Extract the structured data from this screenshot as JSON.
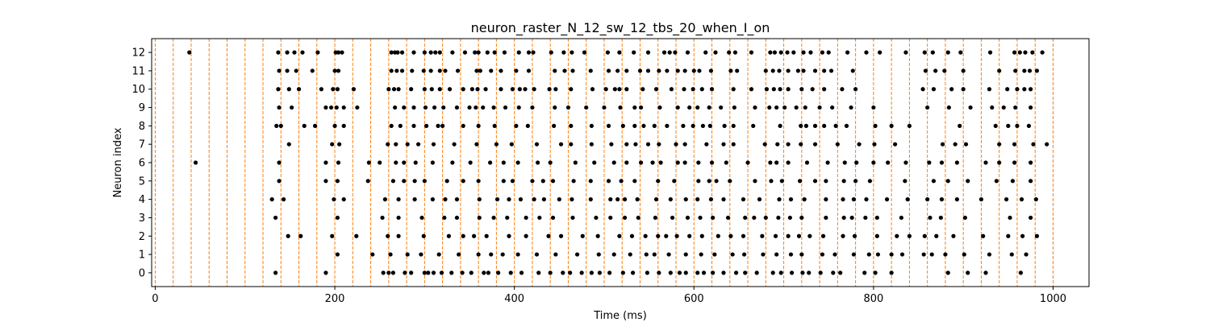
{
  "chart_data": {
    "type": "scatter",
    "title": "neuron_raster_N_12_sw_12_tbs_20_when_I_on",
    "xlabel": "Time (ms)",
    "ylabel": "Neuron index",
    "xlim": [
      -4,
      1040
    ],
    "ylim": [
      -0.75,
      12.75
    ],
    "x_ticks": [
      0,
      200,
      400,
      600,
      800,
      1000
    ],
    "y_ticks": [
      0,
      1,
      2,
      3,
      4,
      5,
      6,
      7,
      8,
      9,
      10,
      11,
      12
    ],
    "grid": false,
    "legend": "none",
    "vlines": {
      "description": "dashed time-bin boundaries",
      "color": "#ff7f0e",
      "x": [
        0,
        20,
        40,
        60,
        80,
        100,
        120,
        140,
        160,
        180,
        200,
        220,
        240,
        260,
        280,
        300,
        320,
        340,
        360,
        380,
        400,
        420,
        440,
        460,
        480,
        500,
        520,
        540,
        560,
        580,
        600,
        620,
        640,
        660,
        680,
        700,
        720,
        740,
        760,
        780,
        800,
        820,
        840,
        860,
        880,
        900,
        920,
        940,
        960,
        980,
        1000
      ]
    },
    "series": [
      {
        "color": "#000000",
        "spikes": [
          {
            "neuron": 12,
            "times": [
              38,
              137,
              147,
              155,
              164,
              181,
              201,
              204,
              208,
              263,
              267,
              270,
              275,
              288,
              300,
              307,
              312,
              317,
              331,
              345,
              356,
              360,
              370,
              378,
              389,
              405,
              416,
              421,
              441,
              455,
              464,
              478,
              504,
              517,
              533,
              549,
              567,
              573,
              579,
              593,
              613,
              624,
              639,
              646,
              664,
              685,
              690,
              697,
              704,
              711,
              722,
              730,
              743,
              750,
              771,
              792,
              807,
              836,
              857,
              866,
              883,
              897,
              930,
              957,
              963,
              969,
              977,
              988
            ]
          },
          {
            "neuron": 11,
            "times": [
              138,
              147,
              157,
              175,
              200,
              204,
              263,
              269,
              275,
              286,
              299,
              307,
              317,
              323,
              337,
              358,
              362,
              374,
              385,
              402,
              416,
              445,
              456,
              465,
              485,
              505,
              515,
              525,
              540,
              549,
              561,
              570,
              582,
              590,
              600,
              606,
              619,
              641,
              648,
              680,
              688,
              695,
              705,
              716,
              722,
              735,
              745,
              753,
              777,
              858,
              869,
              879,
              900,
              940,
              958,
              968,
              974,
              982
            ]
          },
          {
            "neuron": 10,
            "times": [
              137,
              149,
              160,
              185,
              198,
              203,
              221,
              260,
              266,
              271,
              285,
              300,
              308,
              317,
              328,
              343,
              353,
              359,
              368,
              385,
              398,
              406,
              412,
              422,
              439,
              446,
              463,
              487,
              502,
              512,
              517,
              525,
              543,
              558,
              575,
              589,
              599,
              609,
              620,
              644,
              664,
              681,
              689,
              696,
              705,
              720,
              732,
              745,
              765,
              780,
              855,
              867,
              887,
              900,
              929,
              949,
              960,
              968,
              975
            ]
          },
          {
            "neuron": 9,
            "times": [
              138,
              152,
              190,
              196,
              202,
              210,
              225,
              267,
              277,
              288,
              301,
              311,
              321,
              336,
              350,
              357,
              365,
              377,
              390,
              405,
              420,
              445,
              460,
              480,
              500,
              518,
              534,
              541,
              562,
              582,
              595,
              604,
              617,
              630,
              645,
              668,
              684,
              692,
              701,
              714,
              724,
              740,
              754,
              775,
              800,
              860,
              884,
              908,
              932,
              945,
              958,
              975
            ]
          },
          {
            "neuron": 8,
            "times": [
              135,
              140,
              166,
              178,
              200,
              210,
              263,
              273,
              288,
              302,
              315,
              320,
              343,
              360,
              378,
              402,
              415,
              444,
              463,
              486,
              505,
              521,
              534,
              544,
              556,
              570,
              588,
              599,
              610,
              618,
              634,
              644,
              666,
              696,
              719,
              725,
              735,
              745,
              758,
              770,
              802,
              820,
              840,
              896,
              936,
              950,
              960,
              973
            ]
          },
          {
            "neuron": 7,
            "times": [
              149,
              197,
              205,
              259,
              268,
              281,
              293,
              310,
              333,
              358,
              380,
              397,
              425,
              452,
              463,
              486,
              508,
              525,
              535,
              549,
              561,
              580,
              590,
              614,
              633,
              644,
              679,
              693,
              705,
              719,
              735,
              760,
              784,
              801,
              824,
              877,
              891,
              903,
              940,
              957,
              978,
              993
            ]
          },
          {
            "neuron": 6,
            "times": [
              45,
              138,
              190,
              204,
              238,
              250,
              268,
              277,
              290,
              309,
              331,
              351,
              373,
              388,
              404,
              426,
              440,
              468,
              489,
              511,
              525,
              541,
              554,
              563,
              582,
              590,
              605,
              620,
              636,
              660,
              685,
              692,
              705,
              726,
              749,
              768,
              781,
              800,
              816,
              836,
              862,
              876,
              893,
              925,
              940,
              957,
              975
            ]
          },
          {
            "neuron": 5,
            "times": [
              138,
              190,
              203,
              237,
              265,
              277,
              289,
              300,
              325,
              343,
              360,
              388,
              398,
              420,
              432,
              443,
              466,
              485,
              505,
              519,
              534,
              560,
              578,
              605,
              617,
              625,
              640,
              668,
              686,
              698,
              718,
              735,
              747,
              767,
              780,
              796,
              835,
              867,
              883,
              905,
              937,
              955,
              975
            ]
          },
          {
            "neuron": 4,
            "times": [
              130,
              143,
              199,
              210,
              256,
              271,
              289,
              309,
              323,
              336,
              361,
              381,
              394,
              407,
              422,
              433,
              450,
              464,
              485,
              507,
              515,
              523,
              537,
              558,
              574,
              591,
              604,
              619,
              633,
              655,
              673,
              695,
              708,
              723,
              747,
              766,
              778,
              792,
              815,
              838,
              860,
              876,
              893,
              920,
              948,
              965,
              981
            ]
          },
          {
            "neuron": 3,
            "times": [
              134,
              203,
              253,
              271,
              297,
              322,
              336,
              361,
              377,
              392,
              413,
              428,
              443,
              465,
              491,
              507,
              523,
              538,
              557,
              576,
              593,
              607,
              621,
              638,
              657,
              667,
              680,
              694,
              707,
              720,
              747,
              767,
              776,
              791,
              804,
              831,
              863,
              875,
              902,
              952,
              975
            ]
          },
          {
            "neuron": 2,
            "times": [
              148,
              162,
              197,
              224,
              259,
              271,
              299,
              327,
              343,
              355,
              369,
              394,
              413,
              438,
              452,
              476,
              493,
              517,
              531,
              546,
              560,
              569,
              581,
              595,
              609,
              627,
              641,
              655,
              676,
              691,
              705,
              717,
              729,
              744,
              766,
              779,
              804,
              826,
              840,
              857,
              870,
              889,
              922,
              950,
              966,
              982
            ]
          },
          {
            "neuron": 1,
            "times": [
              203,
              242,
              262,
              281,
              296,
              316,
              338,
              360,
              374,
              387,
              404,
              425,
              446,
              470,
              494,
              511,
              529,
              547,
              556,
              572,
              591,
              608,
              623,
              643,
              656,
              677,
              692,
              708,
              720,
              743,
              757,
              778,
              795,
              805,
              820,
              832,
              856,
              865,
              880,
              901,
              929,
              954,
              970
            ]
          },
          {
            "neuron": 0,
            "times": [
              134,
              190,
              254,
              260,
              265,
              278,
              285,
              300,
              304,
              310,
              319,
              330,
              342,
              352,
              366,
              371,
              382,
              396,
              408,
              427,
              440,
              454,
              462,
              475,
              486,
              495,
              506,
              521,
              532,
              548,
              561,
              574,
              584,
              591,
              604,
              611,
              621,
              633,
              647,
              657,
              670,
              688,
              697,
              709,
              721,
              728,
              741,
              755,
              763,
              790,
              802,
              820,
              883,
              905,
              925,
              964
            ]
          }
        ]
      }
    ]
  }
}
